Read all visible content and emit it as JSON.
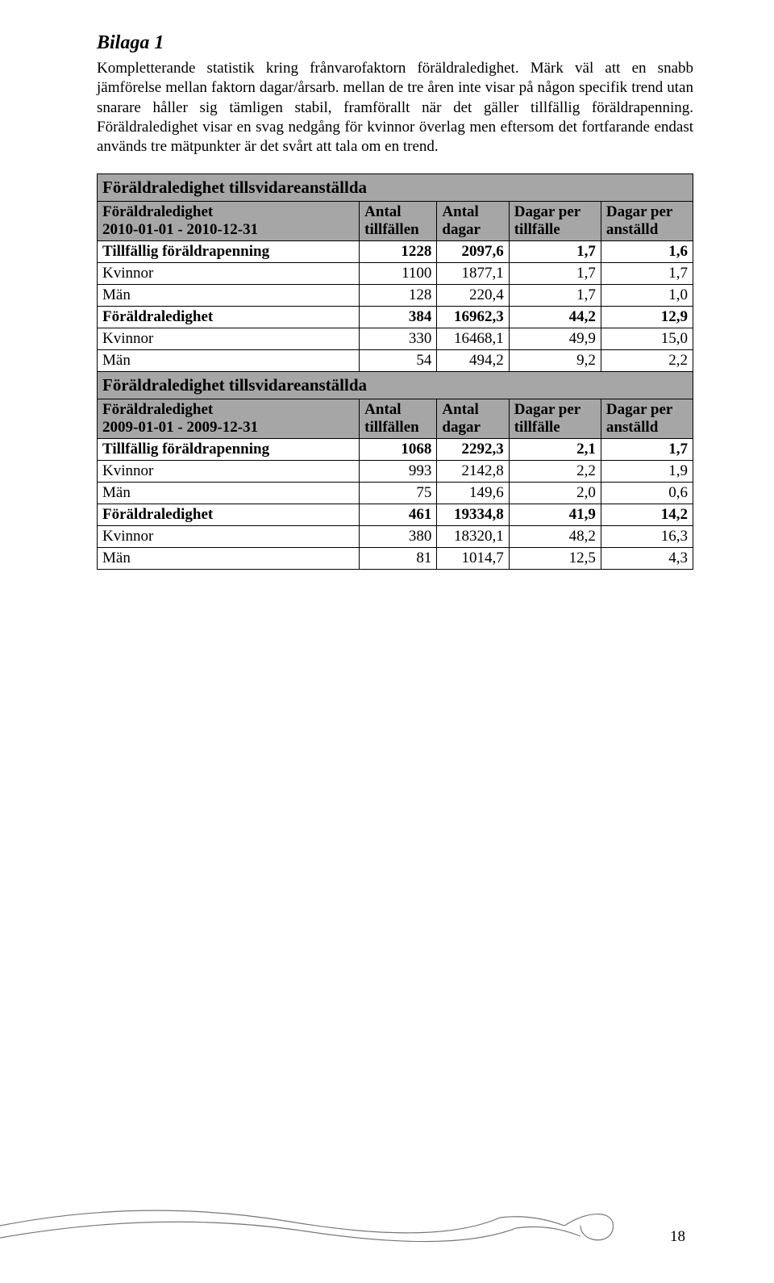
{
  "heading": "Bilaga 1",
  "paragraph": "Kompletterande statistik kring frånvarofaktorn föräldraledighet.\nMärk väl att en snabb jämförelse mellan faktorn dagar/årsarb. mellan de tre åren inte visar på någon specifik trend utan snarare håller sig tämligen stabil, framförallt när det gäller tillfällig föräldrapenning. Föräldraledighet visar en svag nedgång för kvinnor överlag men eftersom det fortfarande endast används tre mätpunkter är det svårt att tala om en trend.",
  "tables": {
    "section1_title": "Föräldraledighet tillsvidareanställda",
    "header1_label_l1": "Föräldraledighet",
    "header1_label_l2": "2010-01-01 - 2010-12-31",
    "col_antal_tillfallen_l1": "Antal",
    "col_antal_tillfallen_l2": "tillfällen",
    "col_antal_dagar_l1": "Antal",
    "col_antal_dagar_l2": "dagar",
    "col_dagar_per_tillfalle_l1": "Dagar per",
    "col_dagar_per_tillfalle_l2": "tillfälle",
    "col_dagar_per_anstalld_l1": "Dagar per",
    "col_dagar_per_anstalld_l2": "anställd",
    "rows1": [
      {
        "label": "Tillfällig föräldrapenning",
        "c1": "1228",
        "c2": "2097,6",
        "c3": "1,7",
        "c4": "1,6",
        "bold": true
      },
      {
        "label": "Kvinnor",
        "c1": "1100",
        "c2": "1877,1",
        "c3": "1,7",
        "c4": "1,7",
        "bold": false
      },
      {
        "label": "Män",
        "c1": "128",
        "c2": "220,4",
        "c3": "1,7",
        "c4": "1,0",
        "bold": false
      },
      {
        "label": "Föräldraledighet",
        "c1": "384",
        "c2": "16962,3",
        "c3": "44,2",
        "c4": "12,9",
        "bold": true
      },
      {
        "label": "Kvinnor",
        "c1": "330",
        "c2": "16468,1",
        "c3": "49,9",
        "c4": "15,0",
        "bold": false
      },
      {
        "label": "Män",
        "c1": "54",
        "c2": "494,2",
        "c3": "9,2",
        "c4": "2,2",
        "bold": false
      }
    ],
    "section2_title": "Föräldraledighet tillsvidareanställda",
    "header2_label_l1": "Föräldraledighet",
    "header2_label_l2": "2009-01-01 - 2009-12-31",
    "rows2": [
      {
        "label": "Tillfällig föräldrapenning",
        "c1": "1068",
        "c2": "2292,3",
        "c3": "2,1",
        "c4": "1,7",
        "bold": true
      },
      {
        "label": "Kvinnor",
        "c1": "993",
        "c2": "2142,8",
        "c3": "2,2",
        "c4": "1,9",
        "bold": false
      },
      {
        "label": "Män",
        "c1": "75",
        "c2": "149,6",
        "c3": "2,0",
        "c4": "0,6",
        "bold": false
      },
      {
        "label": "Föräldraledighet",
        "c1": "461",
        "c2": "19334,8",
        "c3": "41,9",
        "c4": "14,2",
        "bold": true
      },
      {
        "label": "Kvinnor",
        "c1": "380",
        "c2": "18320,1",
        "c3": "48,2",
        "c4": "16,3",
        "bold": false
      },
      {
        "label": "Män",
        "c1": "81",
        "c2": "1014,7",
        "c3": "12,5",
        "c4": "4,3",
        "bold": false
      }
    ]
  },
  "page_number": "18",
  "colors": {
    "header_bg": "#a6a6a6",
    "border": "#000000",
    "text": "#000000",
    "background": "#ffffff",
    "wave_stroke": "#777777"
  }
}
